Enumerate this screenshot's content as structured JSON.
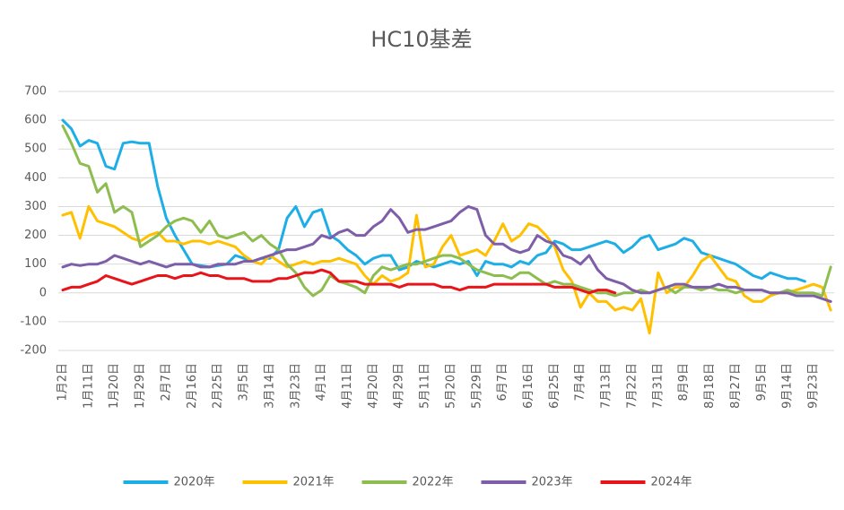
{
  "chart_data": {
    "type": "line",
    "title": "HC10基差",
    "categories": [
      "1月2日",
      null,
      null,
      "1月11日",
      null,
      null,
      "1月20日",
      null,
      null,
      "1月29日",
      null,
      null,
      "2月7日",
      null,
      null,
      "2月16日",
      null,
      null,
      "2月25日",
      null,
      null,
      "3月5日",
      null,
      null,
      "3月14日",
      null,
      null,
      "3月23日",
      null,
      null,
      "4月1日",
      null,
      null,
      "4月11日",
      null,
      null,
      "4月20日",
      null,
      null,
      "4月29日",
      null,
      null,
      "5月11日",
      null,
      null,
      "5月20日",
      null,
      null,
      "5月29日",
      null,
      null,
      "6月7日",
      null,
      null,
      "6月16日",
      null,
      null,
      "6月25日",
      null,
      null,
      "7月4日",
      null,
      null,
      "7月13日",
      null,
      null,
      "7月22日",
      null,
      null,
      "7月31日",
      null,
      null,
      "8月9日",
      null,
      null,
      "8月18日",
      null,
      null,
      "8月27日",
      null,
      null,
      "9月5日",
      null,
      null,
      "9月14日",
      null,
      null,
      "9月23日",
      null,
      null
    ],
    "ylim": [
      -200,
      700
    ],
    "yticks": [
      -200,
      -100,
      0,
      100,
      200,
      300,
      400,
      500,
      600,
      700
    ],
    "grid": true,
    "legend": "bottom",
    "series": [
      {
        "name": "2020年",
        "color": "#1eaee6",
        "values": [
          600,
          570,
          510,
          530,
          520,
          440,
          430,
          520,
          525,
          520,
          520,
          370,
          260,
          200,
          150,
          100,
          95,
          90,
          95,
          100,
          130,
          120,
          110,
          120,
          120,
          150,
          260,
          300,
          230,
          280,
          290,
          200,
          180,
          150,
          130,
          100,
          120,
          130,
          130,
          80,
          90,
          110,
          100,
          90,
          100,
          110,
          100,
          110,
          60,
          110,
          100,
          100,
          90,
          110,
          100,
          130,
          140,
          180,
          170,
          150,
          150,
          160,
          170,
          180,
          170,
          140,
          160,
          190,
          200,
          150,
          160,
          170,
          190,
          180,
          140,
          130,
          120,
          110,
          100,
          80,
          60,
          50,
          70,
          60,
          50,
          50,
          40,
          null,
          null,
          null
        ]
      },
      {
        "name": "2021年",
        "color": "#ffc000",
        "values": [
          270,
          280,
          190,
          300,
          250,
          240,
          230,
          210,
          190,
          180,
          200,
          210,
          180,
          180,
          170,
          180,
          180,
          170,
          180,
          170,
          160,
          130,
          110,
          100,
          130,
          110,
          90,
          100,
          110,
          100,
          110,
          110,
          120,
          110,
          100,
          60,
          30,
          60,
          40,
          50,
          70,
          270,
          90,
          100,
          160,
          200,
          130,
          140,
          150,
          130,
          180,
          240,
          180,
          200,
          240,
          230,
          200,
          160,
          80,
          40,
          -50,
          0,
          -30,
          -30,
          -60,
          -50,
          -60,
          -20,
          -140,
          70,
          0,
          20,
          20,
          60,
          110,
          130,
          90,
          50,
          40,
          -10,
          -30,
          -30,
          -10,
          0,
          0,
          10,
          20,
          30,
          20,
          -60
        ]
      },
      {
        "name": "2022年",
        "color": "#8ebd4f",
        "values": [
          580,
          520,
          450,
          440,
          350,
          380,
          280,
          300,
          280,
          160,
          180,
          200,
          230,
          250,
          260,
          250,
          210,
          250,
          200,
          190,
          200,
          210,
          180,
          200,
          170,
          150,
          100,
          70,
          20,
          -10,
          10,
          60,
          40,
          30,
          20,
          0,
          60,
          90,
          80,
          90,
          100,
          100,
          110,
          120,
          130,
          130,
          120,
          100,
          80,
          70,
          60,
          60,
          50,
          70,
          70,
          50,
          30,
          40,
          30,
          30,
          20,
          10,
          0,
          0,
          -10,
          0,
          0,
          10,
          0,
          10,
          20,
          0,
          20,
          20,
          10,
          20,
          10,
          10,
          0,
          10,
          10,
          10,
          0,
          0,
          10,
          0,
          0,
          0,
          -10,
          90
        ]
      },
      {
        "name": "2023年",
        "color": "#7e5ea8",
        "values": [
          90,
          100,
          95,
          100,
          100,
          110,
          130,
          120,
          110,
          100,
          110,
          100,
          90,
          100,
          100,
          100,
          90,
          90,
          100,
          100,
          100,
          110,
          110,
          120,
          130,
          140,
          150,
          150,
          160,
          170,
          200,
          190,
          210,
          220,
          200,
          200,
          230,
          250,
          290,
          260,
          210,
          220,
          220,
          230,
          240,
          250,
          280,
          300,
          290,
          200,
          170,
          170,
          150,
          140,
          150,
          200,
          180,
          170,
          130,
          120,
          100,
          130,
          80,
          50,
          40,
          30,
          10,
          0,
          0,
          10,
          20,
          30,
          30,
          20,
          20,
          20,
          30,
          20,
          20,
          10,
          10,
          10,
          0,
          0,
          0,
          -10,
          -10,
          -10,
          -20,
          -30
        ]
      },
      {
        "name": "2024年",
        "color": "#e8141a",
        "values": [
          10,
          20,
          20,
          30,
          40,
          60,
          50,
          40,
          30,
          40,
          50,
          60,
          60,
          50,
          60,
          60,
          70,
          60,
          60,
          50,
          50,
          50,
          40,
          40,
          40,
          50,
          50,
          60,
          70,
          70,
          80,
          70,
          40,
          40,
          40,
          30,
          30,
          30,
          30,
          20,
          30,
          30,
          30,
          30,
          20,
          20,
          10,
          20,
          20,
          20,
          30,
          30,
          30,
          30,
          30,
          30,
          30,
          20,
          20,
          20,
          10,
          0,
          10,
          10,
          0,
          null,
          null,
          null,
          null,
          null,
          null,
          null,
          null,
          null,
          null,
          null,
          null,
          null,
          null,
          null,
          null,
          null,
          null,
          null,
          null,
          null,
          null,
          null,
          null,
          null
        ]
      }
    ]
  }
}
